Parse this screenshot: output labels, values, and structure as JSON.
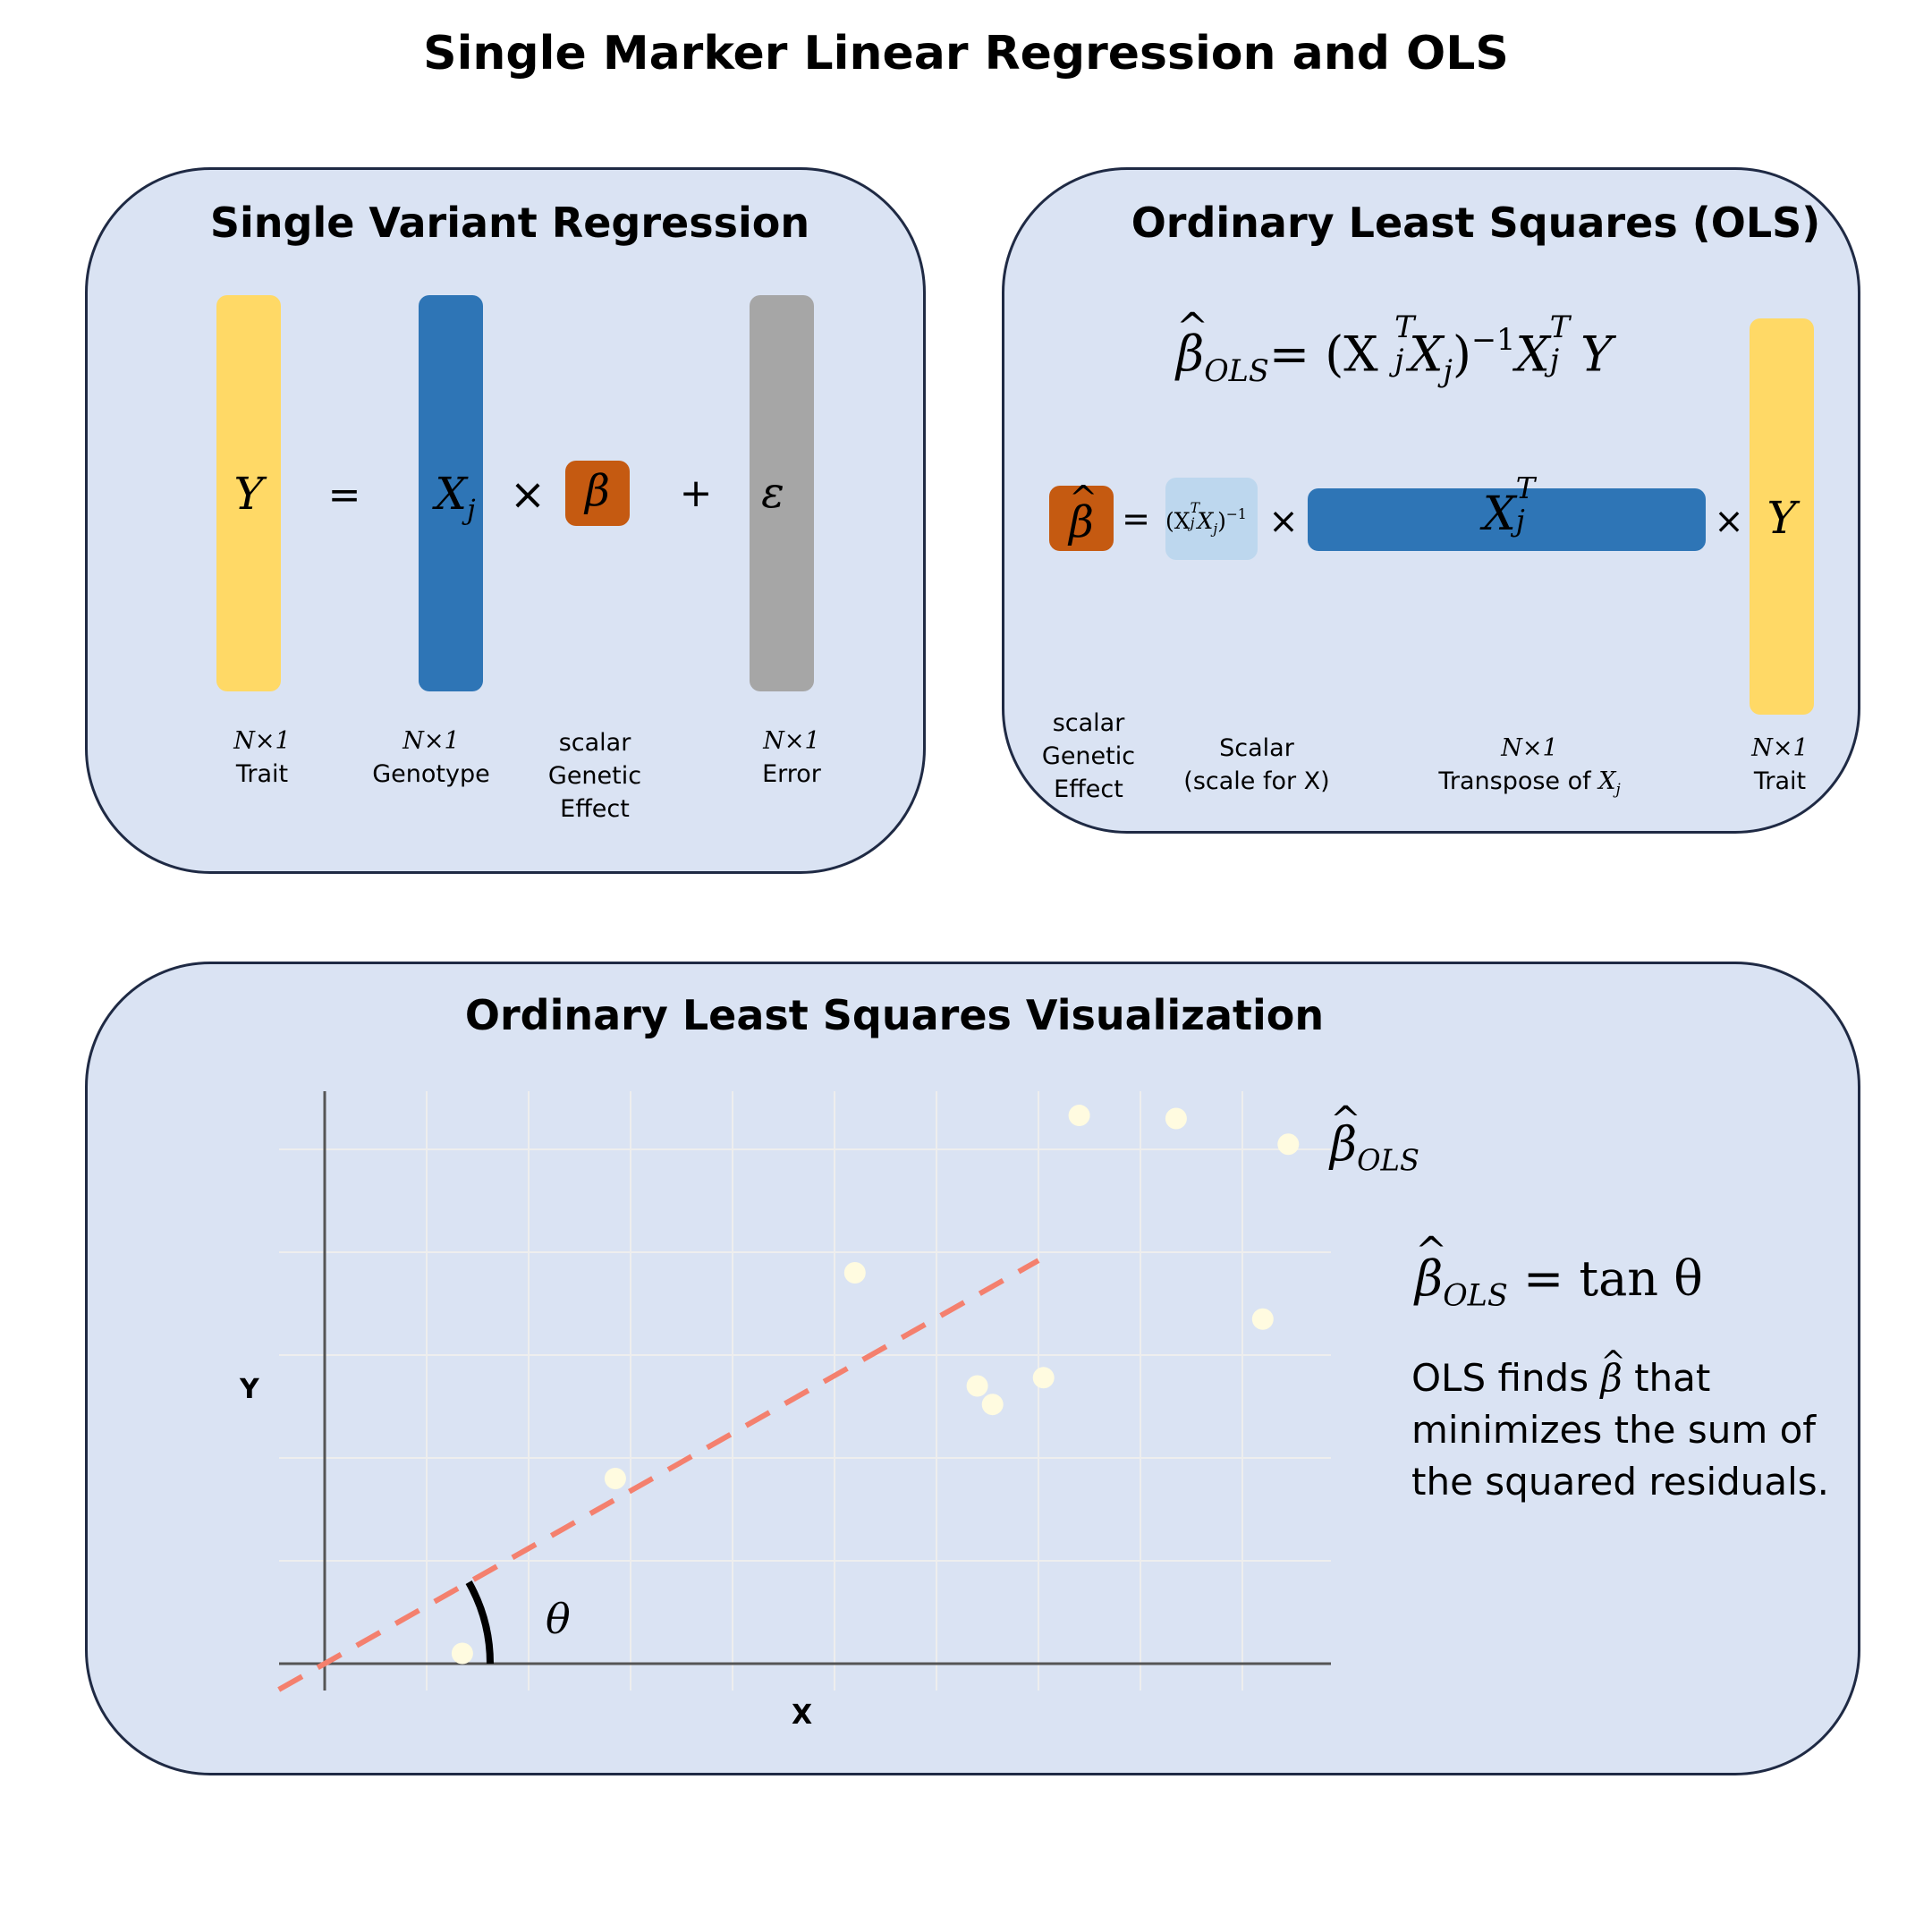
{
  "title": "Single Marker Linear Regression and OLS",
  "colors": {
    "panel_bg": "#dae3f3",
    "panel_border": "#1f2a44",
    "trait_yellow": "#ffd966",
    "genotype_blue": "#2e75b6",
    "effect_orange": "#c55a11",
    "error_gray": "#a6a6a6",
    "scalar_lightblue": "#bdd7ee",
    "ols_line": "#f4806e",
    "points": "#fffbe0"
  },
  "panel1": {
    "title": "Single Variant Regression",
    "y_symbol": "Y",
    "eq": "=",
    "x_symbol": "X",
    "x_sub": "j",
    "times": "×",
    "beta_symbol": "β",
    "plus": "+",
    "eps_symbol": "ε",
    "captions": [
      {
        "dim": "N×1",
        "text": "Trait"
      },
      {
        "dim": "N×1",
        "text": "Genotype"
      },
      {
        "dim": "",
        "text": "scalar\nGenetic\nEffect"
      },
      {
        "dim": "N×1",
        "text": "Error"
      }
    ]
  },
  "panel2": {
    "title": "Ordinary Least Squares (OLS)",
    "formula": {
      "beta": "β",
      "beta_sub": "OLS",
      "rhs_open": "= (X",
      "t1_sup": "T",
      "t1_sub": "j",
      "x2": "X",
      "x2_sub": "j",
      "close": ")",
      "inv": "−1",
      "x3": "X",
      "t3_sup": "T",
      "t3_sub": "j",
      "y": "Y"
    },
    "eq": "=",
    "times1": "×",
    "times2": "×",
    "scalar_text": "(X",
    "scalar_sup": "T",
    "scalar_sub": "j",
    "scalar_x2": "X",
    "scalar_x2_sub": "j",
    "scalar_close": ")",
    "scalar_inv": "−1",
    "transpose_x": "X",
    "transpose_sup": "T",
    "transpose_sub": "j",
    "y_symbol": "Y",
    "captions": {
      "effect": "scalar\nGenetic\nEffect",
      "scalar": "Scalar\n(scale for X)",
      "transpose_dim": "N×1",
      "transpose_text": "Transpose of ",
      "transpose_x": "X",
      "transpose_sub": "j",
      "trait_dim": "N×1",
      "trait_text": "Trait"
    }
  },
  "panel3": {
    "title": "Ordinary Least Squares Visualization",
    "line_label": "β",
    "line_label_sub": "OLS",
    "tan_beta": "β",
    "tan_sub": "OLS",
    "tan_rhs": "= tan θ",
    "description": "OLS finds β̂ that minimizes the sum of the squared residuals.",
    "desc_line1a": "OLS finds ",
    "desc_beta": "β",
    "desc_line1b": " that",
    "desc_line2": "minimizes the sum of",
    "desc_line3": "the squared residuals.",
    "theta": "θ"
  },
  "chart_data": {
    "type": "scatter",
    "xlabel": "X",
    "ylabel": "Y",
    "xlim": [
      0,
      10
    ],
    "ylim": [
      0,
      5.5
    ],
    "grid": true,
    "points": [
      {
        "x": 1.35,
        "y": 0.1
      },
      {
        "x": 2.85,
        "y": 1.8
      },
      {
        "x": 5.2,
        "y": 3.8
      },
      {
        "x": 6.4,
        "y": 2.7
      },
      {
        "x": 6.55,
        "y": 2.52
      },
      {
        "x": 7.05,
        "y": 2.78
      },
      {
        "x": 7.4,
        "y": 5.33
      },
      {
        "x": 8.35,
        "y": 5.3
      },
      {
        "x": 9.2,
        "y": 3.35
      },
      {
        "x": 9.45,
        "y": 5.05
      }
    ],
    "ols_line": {
      "slope": 0.56,
      "intercept": 0,
      "style": "dashed"
    }
  }
}
